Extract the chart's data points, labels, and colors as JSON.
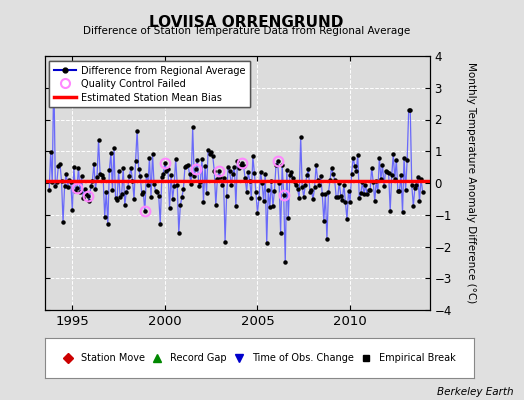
{
  "title": "LOVIISA ORRENGRUND",
  "subtitle": "Difference of Station Temperature Data from Regional Average",
  "ylabel": "Monthly Temperature Anomaly Difference (°C)",
  "xlabel_years": [
    1995,
    2000,
    2005,
    2010
  ],
  "ylim": [
    -4,
    4
  ],
  "xlim": [
    1993.5,
    2014.3
  ],
  "bias_value": 0.05,
  "background_color": "#e0e0e0",
  "plot_bg_color": "#dcdcdc",
  "line_color": "#5555ff",
  "dot_color": "#000000",
  "bias_color": "#ff0000",
  "qc_color": "#ff88ff",
  "berkeley_earth_text": "Berkeley Earth",
  "grid_color": "#ffffff",
  "seed": 42,
  "seed2": 99
}
